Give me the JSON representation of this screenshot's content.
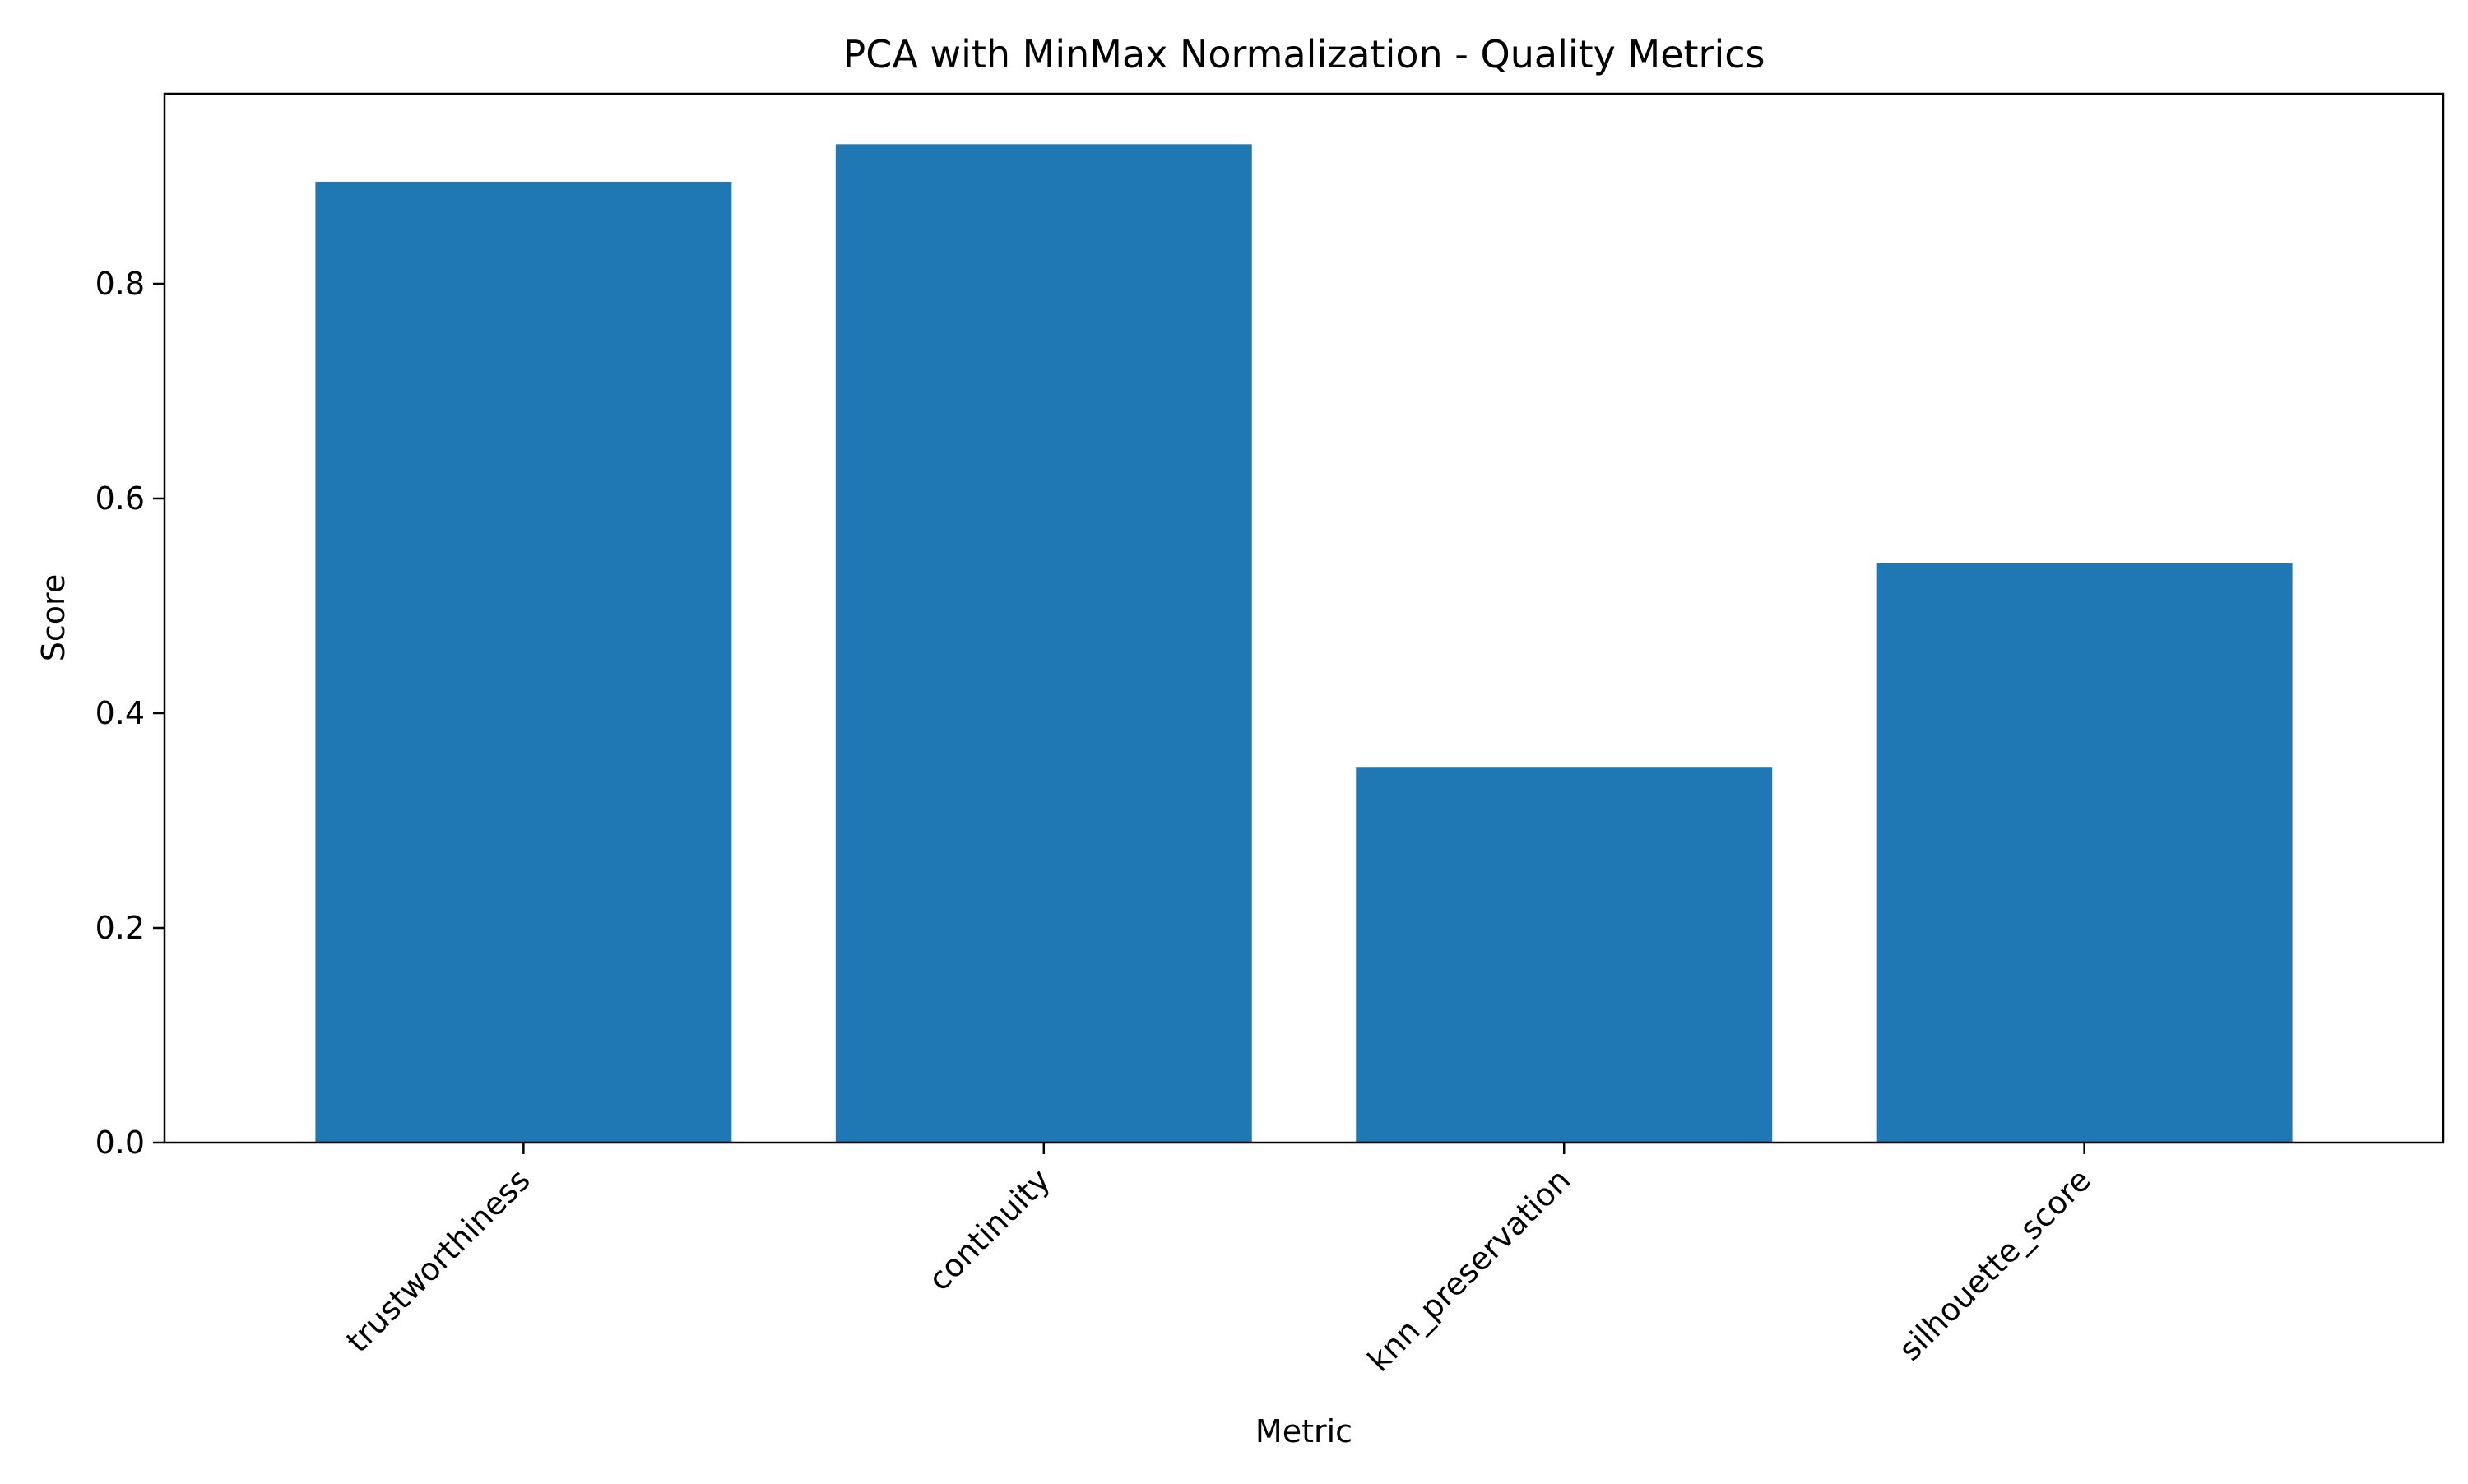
{
  "chart_data": {
    "type": "bar",
    "title": "PCA with MinMax Normalization - Quality Metrics",
    "xlabel": "Metric",
    "ylabel": "Score",
    "categories": [
      "trustworthiness",
      "continuity",
      "knn_preservation",
      "silhouette_score"
    ],
    "values": [
      0.895,
      0.93,
      0.35,
      0.54
    ],
    "ylim": [
      0,
      0.977
    ],
    "yticks": [
      0.0,
      0.2,
      0.4,
      0.6,
      0.8
    ],
    "ytick_labels": [
      "0.0",
      "0.2",
      "0.4",
      "0.6",
      "0.8"
    ],
    "grid": false,
    "legend": "none",
    "bar_color": "#1f77b4"
  }
}
